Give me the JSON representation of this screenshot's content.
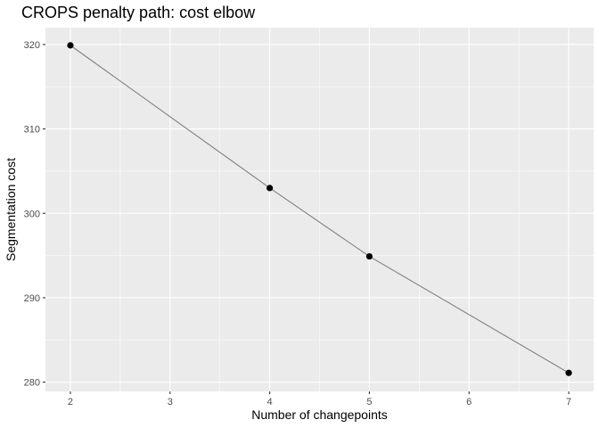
{
  "chart_data": {
    "type": "line",
    "title": "CROPS penalty path: cost elbow",
    "xlabel": "Number of changepoints",
    "ylabel": "Segmentation cost",
    "x": [
      2,
      4,
      5,
      7
    ],
    "y": [
      319.9,
      303.0,
      294.9,
      281.1
    ],
    "xlim": [
      1.75,
      7.25
    ],
    "ylim": [
      278.9,
      322.0
    ],
    "xticks": [
      2,
      3,
      4,
      5,
      6,
      7
    ],
    "yticks": [
      280,
      290,
      300,
      310,
      320
    ],
    "grid": true,
    "legend": "none",
    "colors": {
      "panel": "#ebebeb",
      "grid_major": "#ffffff",
      "line": "#808080",
      "point": "#000000"
    }
  }
}
